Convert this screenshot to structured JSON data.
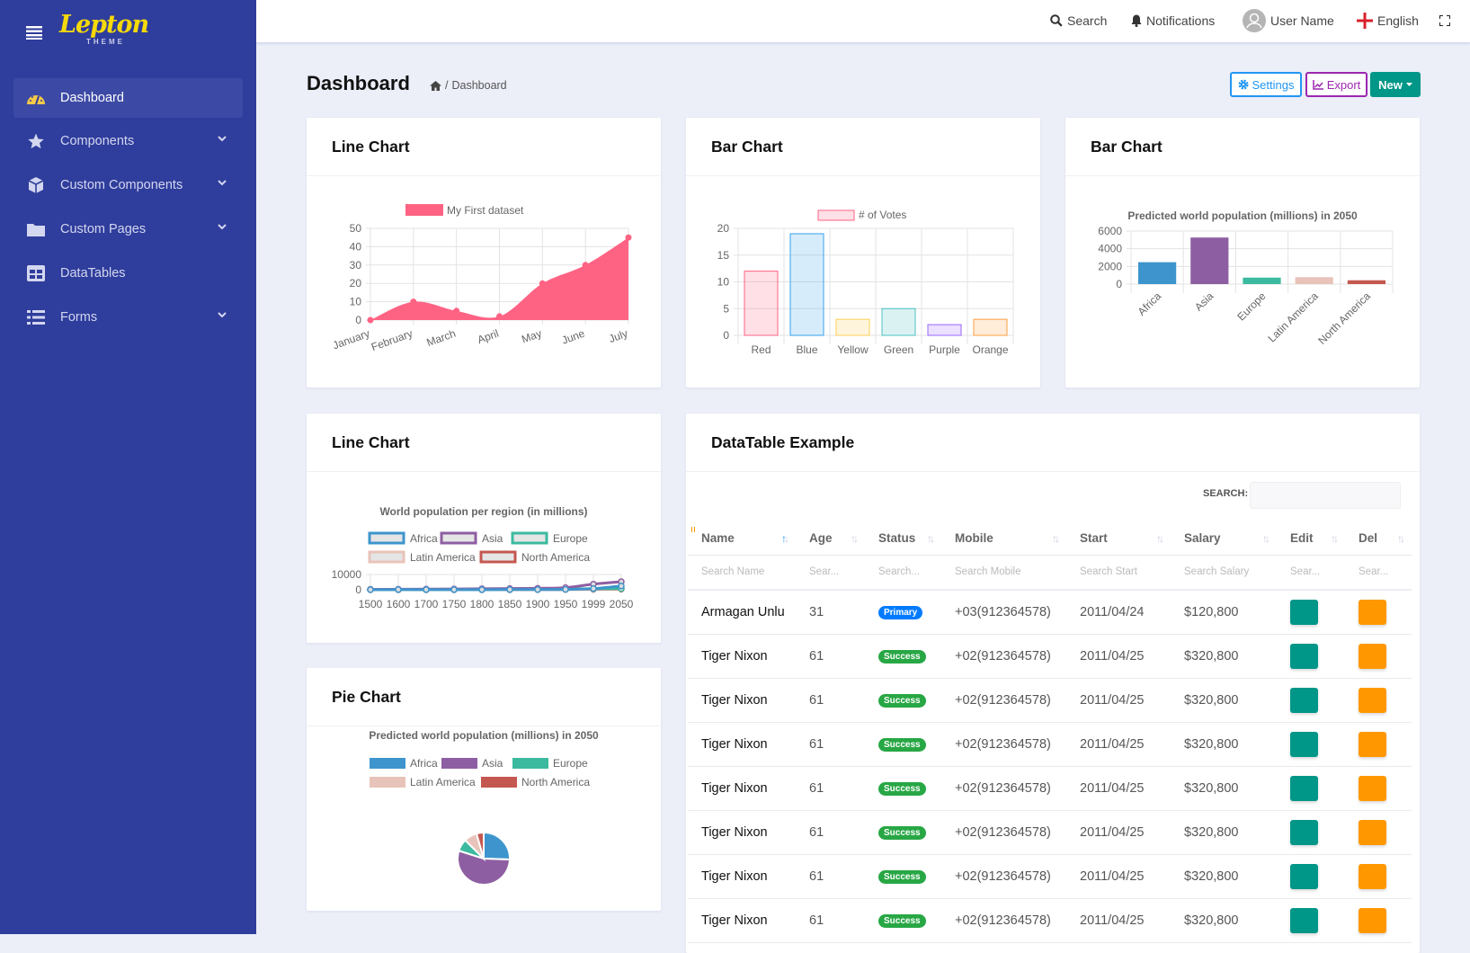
{
  "sidebar": {
    "logo": "Lepton",
    "logo_sub": "THEME",
    "items": [
      {
        "label": "Dashboard",
        "icon": "dashboard-gauge-icon",
        "has_children": false,
        "active": true
      },
      {
        "label": "Components",
        "icon": "star-icon",
        "has_children": true
      },
      {
        "label": "Custom Components",
        "icon": "cube-icon",
        "has_children": true
      },
      {
        "label": "Custom Pages",
        "icon": "folder-icon",
        "has_children": true
      },
      {
        "label": "DataTables",
        "icon": "table-icon",
        "has_children": false
      },
      {
        "label": "Forms",
        "icon": "list-icon",
        "has_children": true
      }
    ]
  },
  "header": {
    "search": "Search",
    "notifications": "Notifications",
    "user": "User Name",
    "language": "English"
  },
  "page": {
    "title": "Dashboard",
    "breadcrumb": "Dashboard",
    "settings": "Settings",
    "export": "Export",
    "new": "New"
  },
  "cards": {
    "line1": "Line Chart",
    "bar1": "Bar Chart",
    "bar2": "Bar Chart",
    "line2": "Line Chart",
    "pie": "Pie Chart",
    "table": "DataTable Example"
  },
  "colors": {
    "sidebar": "#2f3d9c",
    "primary": "#007bff",
    "success": "#28a745",
    "teal": "#009688",
    "orange": "#ff9800",
    "export": "#9c27b0",
    "settings": "#2196f3"
  },
  "chart_data": [
    {
      "type": "area",
      "categories": [
        "January",
        "February",
        "March",
        "April",
        "May",
        "June",
        "July"
      ],
      "series": [
        {
          "name": "My First dataset",
          "values": [
            0,
            10,
            5,
            2,
            20,
            30,
            45
          ],
          "color": "#ff6384"
        }
      ],
      "ylim": [
        0,
        50
      ],
      "yticks": [
        "0",
        "10",
        "20",
        "30",
        "40",
        "50"
      ],
      "grid": true,
      "legend": "top"
    },
    {
      "type": "bar",
      "categories": [
        "Red",
        "Blue",
        "Yellow",
        "Green",
        "Purple",
        "Orange"
      ],
      "series": [
        {
          "name": "# of Votes",
          "values": [
            12,
            19,
            3,
            5,
            2,
            3
          ]
        }
      ],
      "colors": [
        "#ff6384",
        "#36a2eb",
        "#ffce56",
        "#4bc0c0",
        "#9966ff",
        "#ff9f40"
      ],
      "ylim": [
        0,
        20
      ],
      "yticks": [
        "0",
        "5",
        "10",
        "15",
        "20"
      ],
      "grid": true,
      "legend": "top"
    },
    {
      "type": "bar",
      "title": "Predicted world population (millions) in 2050",
      "categories": [
        "Africa",
        "Asia",
        "Europe",
        "Latin America",
        "North America"
      ],
      "values": [
        2478,
        5267,
        734,
        784,
        433
      ],
      "colors": [
        "#3e95cd",
        "#8e5ea2",
        "#3cba9f",
        "#e8c3b9",
        "#c45850"
      ],
      "ylim": [
        0,
        6000
      ],
      "yticks": [
        "0",
        "2000",
        "4000",
        "6000"
      ],
      "grid": true,
      "legend": "none"
    },
    {
      "type": "line",
      "title": "World population per region (in millions)",
      "categories": [
        "1500",
        "1600",
        "1700",
        "1750",
        "1800",
        "1850",
        "1900",
        "1950",
        "1999",
        "2050"
      ],
      "series": [
        {
          "name": "Africa",
          "values": [
            86,
            114,
            106,
            106,
            107,
            111,
            133,
            221,
            783,
            2478
          ],
          "color": "#3e95cd"
        },
        {
          "name": "Asia",
          "values": [
            282,
            350,
            411,
            502,
            635,
            809,
            947,
            1402,
            3700,
            5267
          ],
          "color": "#8e5ea2"
        },
        {
          "name": "Europe",
          "values": [
            168,
            170,
            178,
            190,
            203,
            276,
            408,
            547,
            675,
            734
          ],
          "color": "#3cba9f"
        },
        {
          "name": "Latin America",
          "values": [
            40,
            20,
            10,
            16,
            24,
            38,
            74,
            167,
            508,
            784
          ],
          "color": "#e8c3b9"
        },
        {
          "name": "North America",
          "values": [
            6,
            3,
            2,
            2,
            7,
            26,
            82,
            172,
            312,
            433
          ],
          "color": "#c45850"
        }
      ],
      "ylim": [
        0,
        10000
      ],
      "yticks": [
        "0",
        "10000"
      ],
      "grid": true,
      "legend": "top"
    },
    {
      "type": "pie",
      "title": "Predicted world population (millions) in 2050",
      "categories": [
        "Africa",
        "Asia",
        "Europe",
        "Latin America",
        "North America"
      ],
      "values": [
        2478,
        5267,
        734,
        784,
        433
      ],
      "colors": [
        "#3e95cd",
        "#8e5ea2",
        "#3cba9f",
        "#e8c3b9",
        "#c45850"
      ],
      "legend": "top"
    }
  ],
  "datatable": {
    "search_label": "SEARCH:",
    "search_value": "",
    "columns": [
      "Name",
      "Age",
      "Status",
      "Mobile",
      "Start",
      "Salary",
      "Edit",
      "Del"
    ],
    "column_search": [
      "Search Name",
      "Sear...",
      "Search...",
      "Search Mobile",
      "Search Start",
      "Search Salary",
      "Sear...",
      "Sear..."
    ],
    "sorted_column": "Name",
    "rows": [
      {
        "name": "Armagan Unlu",
        "age": "31",
        "status": "Primary",
        "status_color": "#007bff",
        "mobile": "+03(912364578)",
        "start": "2011/04/24",
        "salary": "$120,800"
      },
      {
        "name": "Tiger Nixon",
        "age": "61",
        "status": "Success",
        "status_color": "#28a745",
        "mobile": "+02(912364578)",
        "start": "2011/04/25",
        "salary": "$320,800"
      },
      {
        "name": "Tiger Nixon",
        "age": "61",
        "status": "Success",
        "status_color": "#28a745",
        "mobile": "+02(912364578)",
        "start": "2011/04/25",
        "salary": "$320,800"
      },
      {
        "name": "Tiger Nixon",
        "age": "61",
        "status": "Success",
        "status_color": "#28a745",
        "mobile": "+02(912364578)",
        "start": "2011/04/25",
        "salary": "$320,800"
      },
      {
        "name": "Tiger Nixon",
        "age": "61",
        "status": "Success",
        "status_color": "#28a745",
        "mobile": "+02(912364578)",
        "start": "2011/04/25",
        "salary": "$320,800"
      },
      {
        "name": "Tiger Nixon",
        "age": "61",
        "status": "Success",
        "status_color": "#28a745",
        "mobile": "+02(912364578)",
        "start": "2011/04/25",
        "salary": "$320,800"
      },
      {
        "name": "Tiger Nixon",
        "age": "61",
        "status": "Success",
        "status_color": "#28a745",
        "mobile": "+02(912364578)",
        "start": "2011/04/25",
        "salary": "$320,800"
      },
      {
        "name": "Tiger Nixon",
        "age": "61",
        "status": "Success",
        "status_color": "#28a745",
        "mobile": "+02(912364578)",
        "start": "2011/04/25",
        "salary": "$320,800"
      }
    ]
  }
}
